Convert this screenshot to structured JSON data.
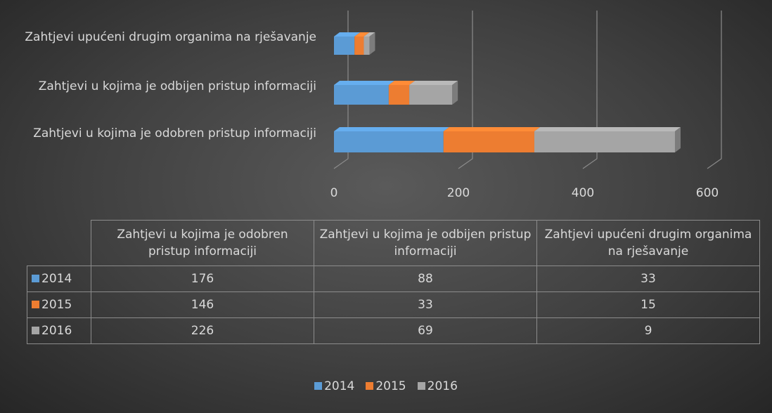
{
  "chart_data": {
    "type": "bar",
    "orientation": "horizontal",
    "stacked": true,
    "categories": [
      "Zahtjevi u kojima je odobren pristup informaciji",
      "Zahtjevi u kojima je odbijen pristup informaciji",
      "Zahtjevi upućeni drugim organima na rješavanje"
    ],
    "series": [
      {
        "name": "2014",
        "color": "#5b9bd5",
        "values": [
          176,
          88,
          33
        ]
      },
      {
        "name": "2015",
        "color": "#ed7d31",
        "values": [
          146,
          33,
          15
        ]
      },
      {
        "name": "2016",
        "color": "#a5a5a5",
        "values": [
          226,
          69,
          9
        ]
      }
    ],
    "xlim": [
      0,
      600
    ],
    "xticks": [
      0,
      200,
      400,
      600
    ],
    "grid": true,
    "legend": "bottom",
    "data_table": true
  }
}
